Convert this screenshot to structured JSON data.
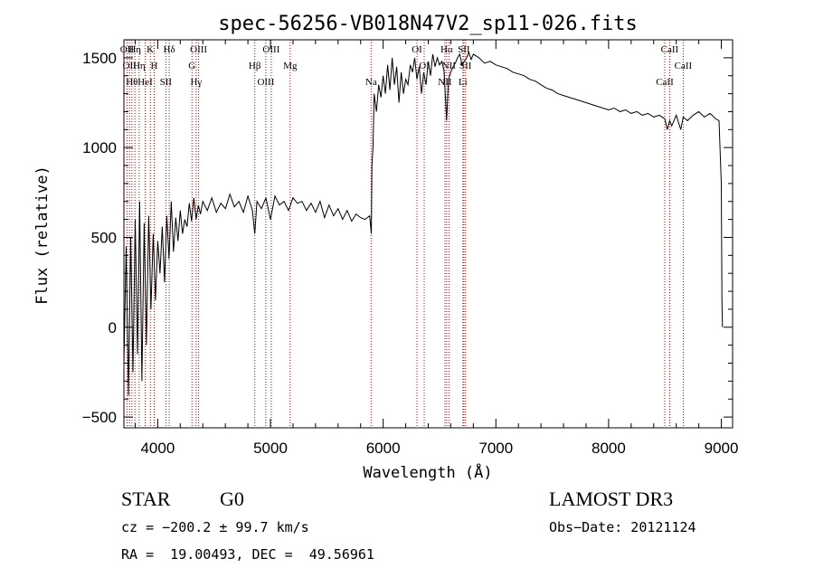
{
  "chart_data": {
    "type": "line",
    "title": "spec-56256-VB018N47V2_sp11-026.fits",
    "xlabel": "Wavelength (Å)",
    "ylabel": "Flux (relative)",
    "xlim": [
      3700,
      9100
    ],
    "ylim": [
      -560,
      1600
    ],
    "xticks": [
      4000,
      5000,
      6000,
      7000,
      8000,
      9000
    ],
    "yticks": [
      -500,
      0,
      500,
      1000,
      1500
    ],
    "series": [
      {
        "name": "flux",
        "x": [
          3700,
          3720,
          3740,
          3760,
          3780,
          3800,
          3820,
          3840,
          3860,
          3880,
          3900,
          3920,
          3940,
          3960,
          3980,
          4000,
          4020,
          4040,
          4060,
          4080,
          4100,
          4120,
          4140,
          4160,
          4180,
          4200,
          4220,
          4240,
          4260,
          4280,
          4300,
          4320,
          4340,
          4360,
          4380,
          4400,
          4440,
          4480,
          4520,
          4560,
          4600,
          4640,
          4680,
          4720,
          4760,
          4800,
          4840,
          4861,
          4880,
          4920,
          4960,
          5000,
          5040,
          5080,
          5120,
          5160,
          5200,
          5240,
          5280,
          5320,
          5360,
          5400,
          5440,
          5480,
          5520,
          5560,
          5600,
          5640,
          5680,
          5720,
          5760,
          5800,
          5840,
          5880,
          5895,
          5900,
          5910,
          5920,
          5940,
          5960,
          5980,
          6000,
          6020,
          6040,
          6060,
          6080,
          6100,
          6120,
          6140,
          6160,
          6180,
          6200,
          6220,
          6240,
          6260,
          6280,
          6300,
          6320,
          6340,
          6360,
          6380,
          6400,
          6420,
          6440,
          6460,
          6480,
          6500,
          6520,
          6540,
          6563,
          6580,
          6600,
          6620,
          6640,
          6660,
          6680,
          6700,
          6720,
          6740,
          6760,
          6780,
          6800,
          6850,
          6900,
          6950,
          7000,
          7050,
          7100,
          7150,
          7200,
          7250,
          7300,
          7350,
          7400,
          7450,
          7500,
          7550,
          7600,
          7650,
          7700,
          7750,
          7800,
          7850,
          7900,
          7950,
          8000,
          8050,
          8100,
          8150,
          8200,
          8250,
          8300,
          8350,
          8400,
          8450,
          8500,
          8520,
          8542,
          8560,
          8600,
          8640,
          8662,
          8700,
          8750,
          8800,
          8850,
          8900,
          8950,
          8980,
          9000,
          9005,
          9010
        ],
        "values": [
          -200,
          450,
          -380,
          500,
          -250,
          600,
          -150,
          700,
          -300,
          580,
          -100,
          620,
          100,
          520,
          150,
          480,
          300,
          560,
          250,
          620,
          380,
          700,
          420,
          610,
          480,
          650,
          520,
          600,
          560,
          690,
          590,
          720,
          600,
          680,
          630,
          700,
          650,
          720,
          640,
          690,
          660,
          740,
          670,
          700,
          640,
          730,
          650,
          520,
          700,
          660,
          720,
          600,
          730,
          680,
          700,
          650,
          720,
          690,
          700,
          650,
          690,
          640,
          700,
          610,
          680,
          620,
          660,
          600,
          650,
          590,
          630,
          610,
          600,
          620,
          520,
          900,
          1000,
          1300,
          1200,
          1350,
          1280,
          1400,
          1300,
          1460,
          1320,
          1500,
          1350,
          1450,
          1250,
          1420,
          1300,
          1380,
          1350,
          1460,
          1420,
          1500,
          1380,
          1450,
          1300,
          1420,
          1350,
          1480,
          1400,
          1520,
          1450,
          1500,
          1460,
          1480,
          1430,
          1150,
          1380,
          1420,
          1450,
          1470,
          1500,
          1520,
          1460,
          1480,
          1500,
          1530,
          1490,
          1520,
          1500,
          1470,
          1480,
          1460,
          1450,
          1440,
          1420,
          1410,
          1400,
          1380,
          1370,
          1350,
          1330,
          1320,
          1300,
          1290,
          1280,
          1270,
          1260,
          1250,
          1240,
          1230,
          1220,
          1210,
          1220,
          1200,
          1210,
          1190,
          1200,
          1180,
          1190,
          1170,
          1180,
          1160,
          1100,
          1150,
          1120,
          1180,
          1100,
          1170,
          1150,
          1180,
          1200,
          1170,
          1190,
          1160,
          1150,
          800,
          150,
          0
        ]
      }
    ],
    "line_markers": [
      {
        "wl": 3727,
        "label": "OII"
      },
      {
        "wl": 3750,
        "label": "OII"
      },
      {
        "wl": 3771,
        "label": "Hθ"
      },
      {
        "wl": 3798,
        "label": "Hη"
      },
      {
        "wl": 3835,
        "label": "Hη"
      },
      {
        "wl": 3889,
        "label": "HeI"
      },
      {
        "wl": 3934,
        "label": "K"
      },
      {
        "wl": 3969,
        "label": "H"
      },
      {
        "wl": 4072,
        "label": "SII"
      },
      {
        "wl": 4102,
        "label": "Hδ"
      },
      {
        "wl": 4304,
        "label": "G"
      },
      {
        "wl": 4341,
        "label": "Hγ"
      },
      {
        "wl": 4363,
        "label": "OIII"
      },
      {
        "wl": 4861,
        "label": "Hβ"
      },
      {
        "wl": 4959,
        "label": "OIII"
      },
      {
        "wl": 5007,
        "label": "OIII"
      },
      {
        "wl": 5175,
        "label": "Mg"
      },
      {
        "wl": 5893,
        "label": "Na"
      },
      {
        "wl": 6300,
        "label": "OI"
      },
      {
        "wl": 6364,
        "label": "OI"
      },
      {
        "wl": 6548,
        "label": "NII"
      },
      {
        "wl": 6563,
        "label": "Hα"
      },
      {
        "wl": 6583,
        "label": "NII"
      },
      {
        "wl": 6707,
        "label": "Li"
      },
      {
        "wl": 6716,
        "label": "SII"
      },
      {
        "wl": 6731,
        "label": "SII"
      },
      {
        "wl": 8498,
        "label": "CaII"
      },
      {
        "wl": 8542,
        "label": "CaII"
      },
      {
        "wl": 8662,
        "label": "CaII"
      }
    ]
  },
  "info": {
    "class": "STAR",
    "subclass": "G0",
    "survey": "LAMOST DR3",
    "cz": "cz = −200.2 ± 99.7 km/s",
    "obs_date": "Obs−Date: 20121124",
    "coords": "RA =  19.00493, DEC =  49.56961"
  }
}
